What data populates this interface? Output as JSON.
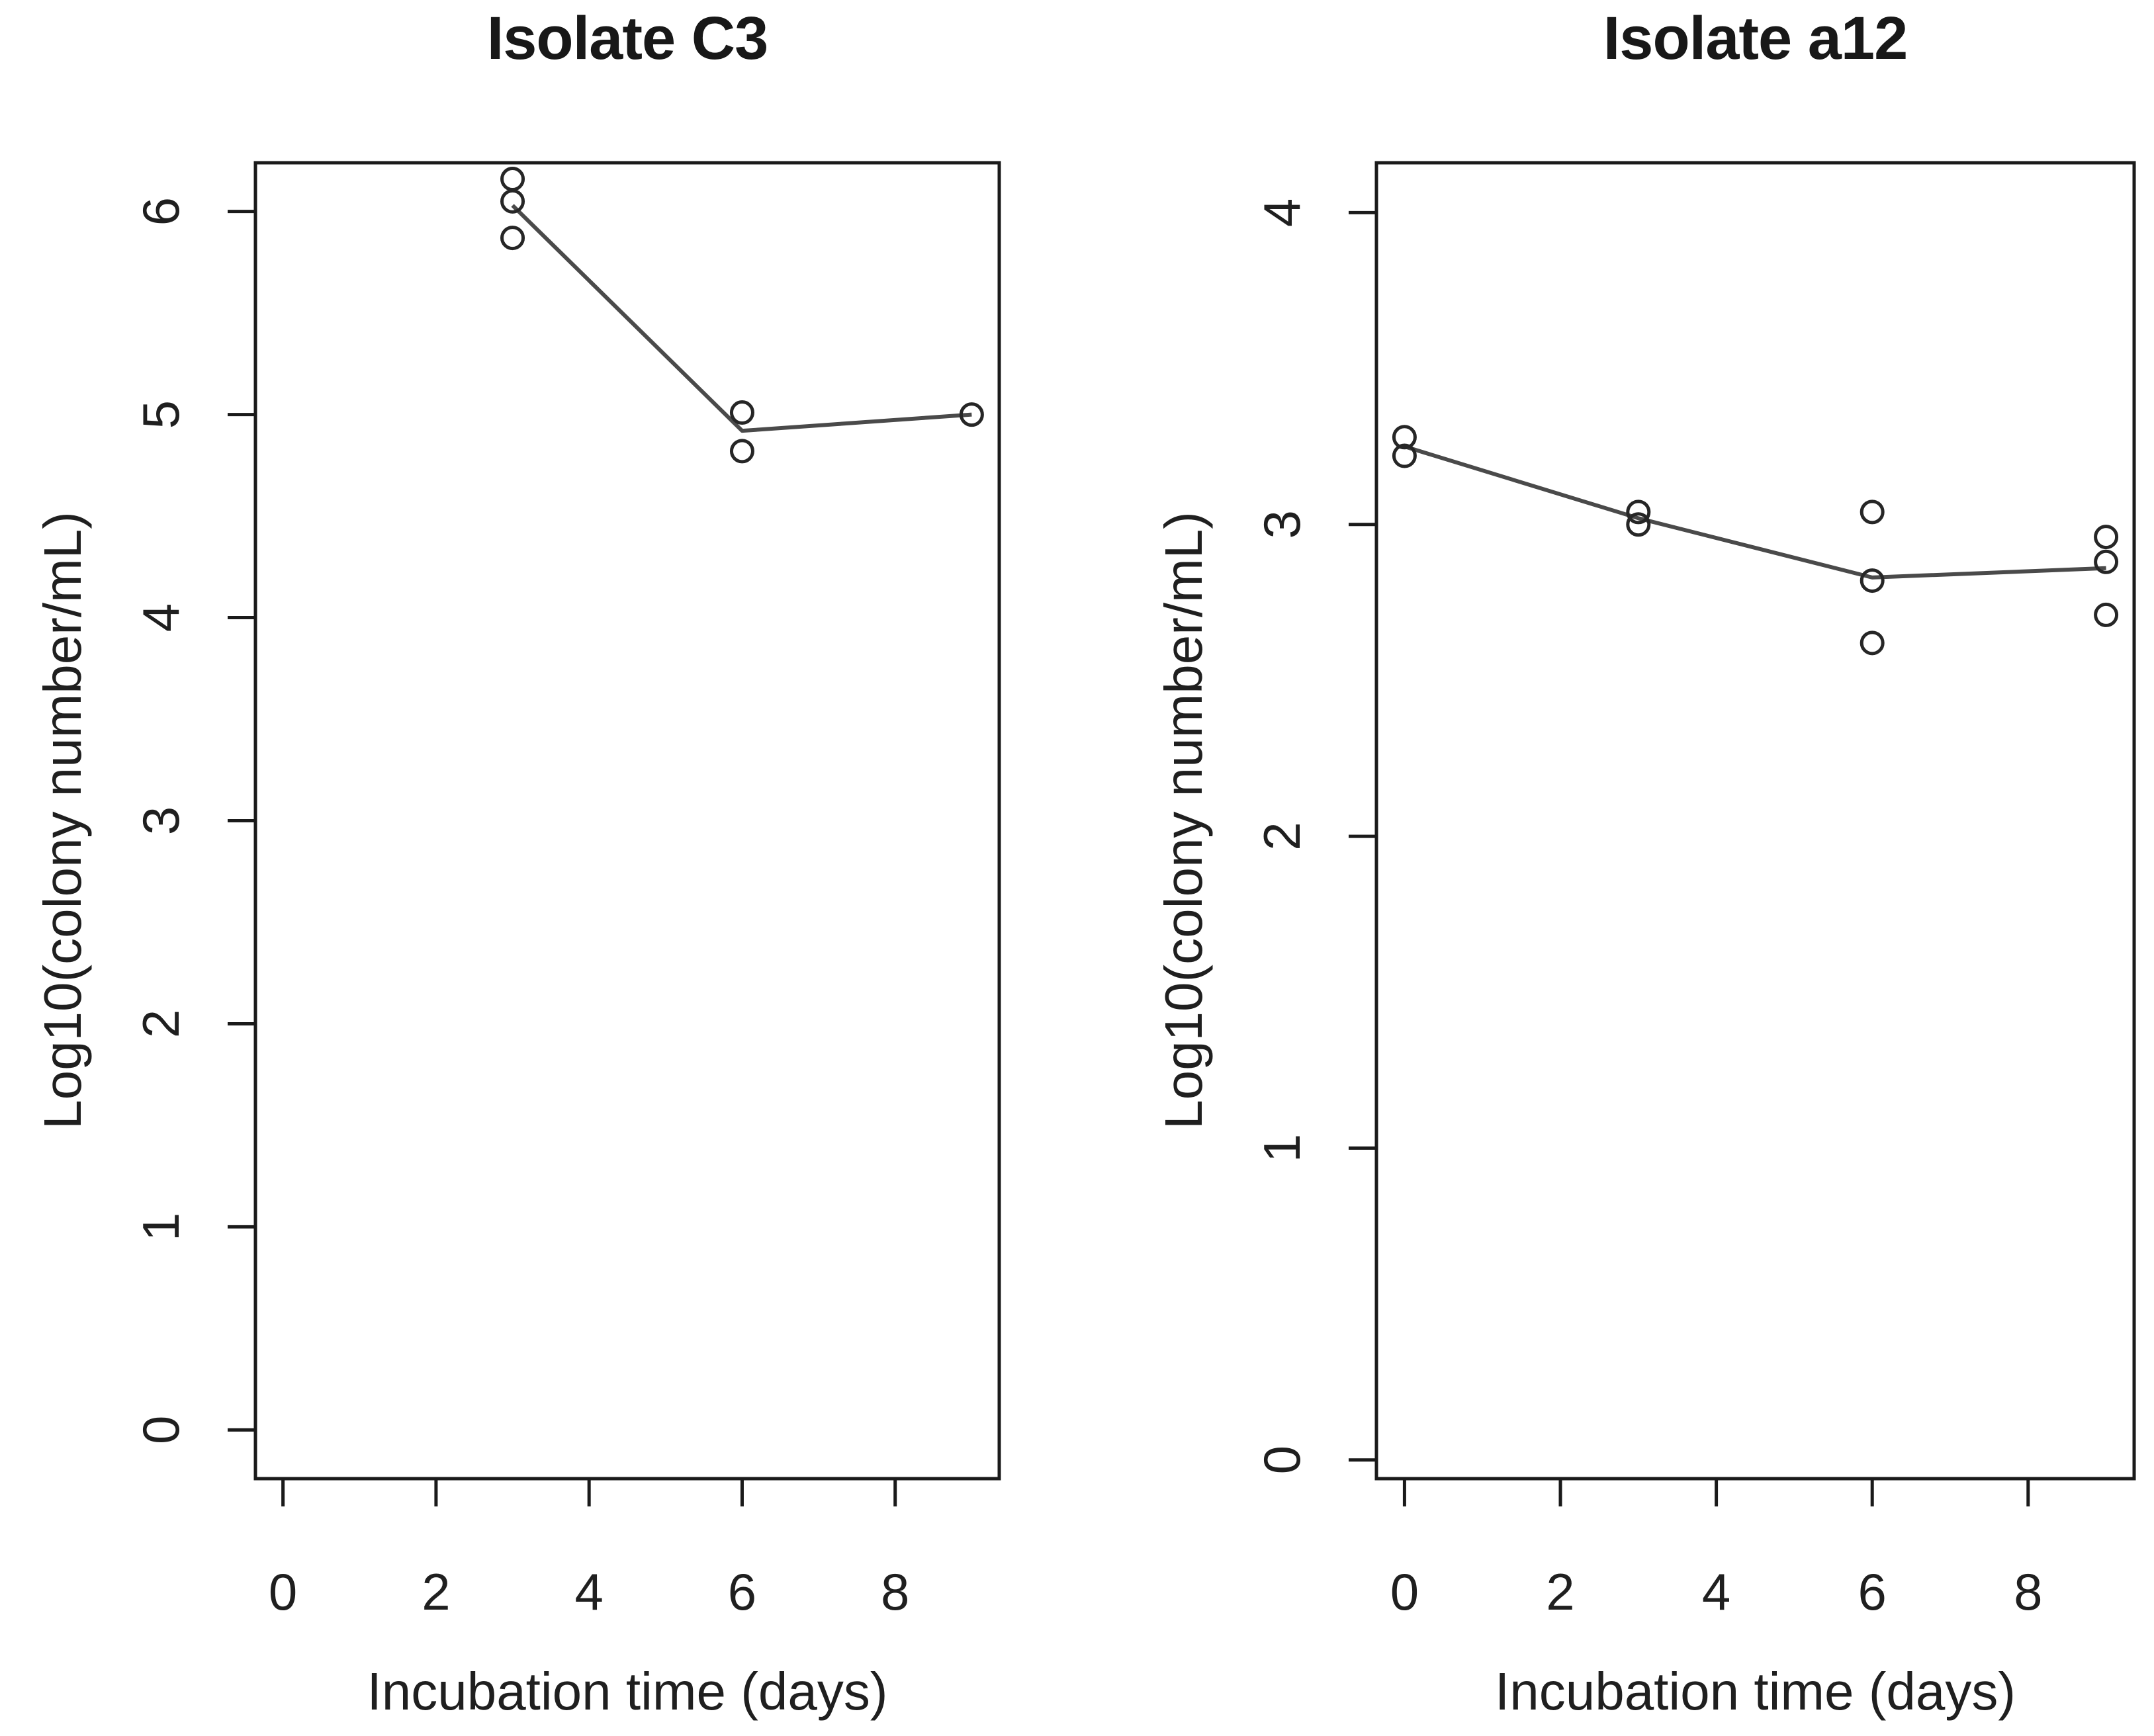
{
  "figure": {
    "background": "#ffffff",
    "text_color": "#1f1f1f",
    "axis_color": "#1a1a1a",
    "mean_line_color": "#4a4a4a",
    "marker_color": "#262626"
  },
  "chart_data": [
    {
      "type": "scatter",
      "title": "Isolate C3",
      "xlabel": "Incubation time (days)",
      "ylabel": "Log10(colony number/mL)",
      "x_ticks": [
        0,
        2,
        4,
        6,
        8
      ],
      "y_ticks": [
        0,
        1,
        2,
        3,
        4,
        5,
        6
      ],
      "xlim": [
        0,
        9
      ],
      "ylim": [
        0,
        6
      ],
      "grid": false,
      "legend": null,
      "marker": "open-circle",
      "replicate_points": [
        {
          "x": 3,
          "y": 6.16
        },
        {
          "x": 3,
          "y": 6.05
        },
        {
          "x": 3,
          "y": 5.87
        },
        {
          "x": 6,
          "y": 5.01
        },
        {
          "x": 6,
          "y": 4.82
        },
        {
          "x": 9,
          "y": 5.0
        }
      ],
      "mean_line": [
        {
          "x": 3,
          "y": 6.03
        },
        {
          "x": 6,
          "y": 4.92
        },
        {
          "x": 9,
          "y": 5.0
        }
      ]
    },
    {
      "type": "scatter",
      "title": "Isolate a12",
      "xlabel": "Incubation time (days)",
      "ylabel": "Log10(colony number/mL)",
      "x_ticks": [
        0,
        2,
        4,
        6,
        8
      ],
      "y_ticks": [
        0,
        1,
        2,
        3,
        4
      ],
      "xlim": [
        0,
        9
      ],
      "ylim": [
        0,
        4
      ],
      "grid": false,
      "legend": null,
      "marker": "open-circle",
      "replicate_points": [
        {
          "x": 0,
          "y": 3.28
        },
        {
          "x": 0,
          "y": 3.22
        },
        {
          "x": 3,
          "y": 3.04
        },
        {
          "x": 3,
          "y": 3.0
        },
        {
          "x": 6,
          "y": 3.04
        },
        {
          "x": 6,
          "y": 2.82
        },
        {
          "x": 6,
          "y": 2.62
        },
        {
          "x": 9,
          "y": 2.96
        },
        {
          "x": 9,
          "y": 2.88
        },
        {
          "x": 9,
          "y": 2.71
        }
      ],
      "mean_line": [
        {
          "x": 0,
          "y": 3.25
        },
        {
          "x": 3,
          "y": 3.02
        },
        {
          "x": 6,
          "y": 2.83
        },
        {
          "x": 9,
          "y": 2.86
        }
      ]
    }
  ]
}
